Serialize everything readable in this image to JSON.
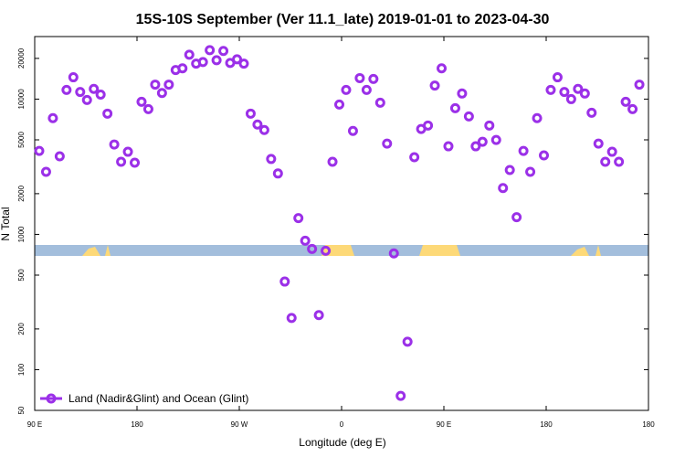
{
  "chart_data": {
    "type": "scatter",
    "title": "15S-10S September (Ver 11.1_late)   2019-01-01 to 2023-04-30",
    "xlabel": "Longitude (deg E)",
    "ylabel": "N Total",
    "log_y": true,
    "xlim": [
      90,
      630
    ],
    "ylim": [
      50,
      29000
    ],
    "xticks": [
      {
        "value": 90,
        "label": "90 E"
      },
      180,
      {
        "value": 270,
        "label": "90 W"
      },
      {
        "value": 360,
        "label": "0"
      },
      {
        "value": 450,
        "label": "90 E"
      },
      {
        "value": 540,
        "label": "180"
      },
      {
        "value": 630,
        "label": "180"
      }
    ],
    "yticks": [
      50,
      100,
      200,
      500,
      1000,
      2000,
      5000,
      10000,
      20000
    ],
    "legend": "lower left",
    "series": [
      {
        "name": "Land (Nadir&Glint) and Ocean (Glint)",
        "color": "#9b30e8",
        "x": [
          94,
          100,
          106,
          112,
          118,
          124,
          130,
          136,
          142,
          148,
          154,
          160,
          166,
          172,
          178,
          184,
          190,
          196,
          202,
          208,
          214,
          220,
          226,
          232,
          238,
          244,
          250,
          256,
          262,
          268,
          274,
          280,
          286,
          292,
          298,
          304,
          310,
          316,
          322,
          328,
          334,
          340,
          346,
          352,
          358,
          364,
          370,
          376,
          382,
          388,
          394,
          400,
          406,
          412,
          418,
          424,
          430,
          436,
          442,
          448,
          454,
          460,
          466,
          472,
          478,
          484,
          490,
          496,
          502,
          508,
          514,
          520,
          526,
          532,
          538,
          544,
          550,
          556,
          562,
          568,
          574,
          580,
          586,
          592,
          598,
          604,
          610,
          616,
          622
        ],
        "values": [
          4140,
          2900,
          7230,
          3780,
          11700,
          14500,
          11300,
          9850,
          11900,
          10800,
          7810,
          4620,
          3440,
          4080,
          3390,
          9550,
          8440,
          12800,
          11100,
          12800,
          16400,
          16900,
          21300,
          18300,
          18800,
          23000,
          19400,
          22700,
          18500,
          19700,
          18300,
          7810,
          6490,
          5910,
          3610,
          2820,
          448,
          241,
          1320,
          898,
          781,
          253,
          757,
          3440,
          9120,
          11700,
          5820,
          14300,
          11700,
          14100,
          9400,
          4690,
          723,
          64,
          161,
          3720,
          6010,
          6380,
          12600,
          16900,
          4480,
          8570,
          11000,
          7450,
          4480,
          4840,
          6380,
          4990,
          2200,
          2990,
          1340,
          4140,
          2900,
          7230,
          3840,
          11700,
          14500,
          11300,
          10000,
          11900,
          11000,
          7930,
          4690,
          3440,
          4080,
          3440,
          9550,
          8440,
          12800
        ]
      }
    ]
  }
}
